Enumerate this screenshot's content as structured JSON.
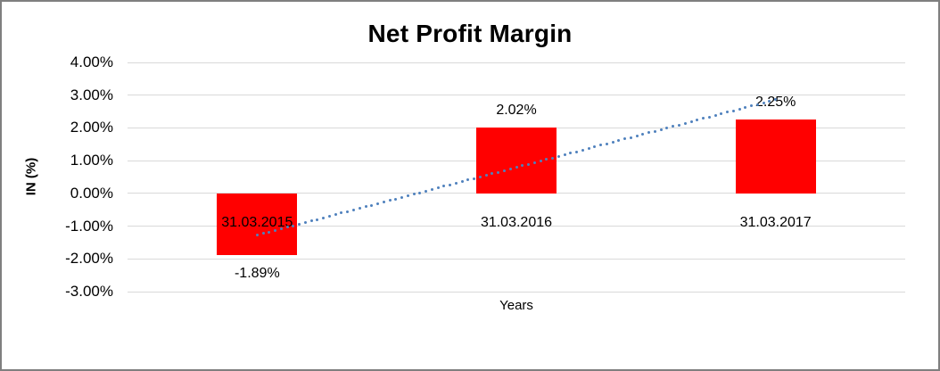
{
  "chart_data": {
    "type": "bar",
    "title": "Net Profit Margin",
    "xlabel": "Years",
    "ylabel": "IN (%)",
    "categories": [
      "31.03.2015",
      "31.03.2016",
      "31.03.2017"
    ],
    "values": [
      -1.89,
      2.02,
      2.25
    ],
    "data_labels": [
      "-1.89%",
      "2.02%",
      "2.25%"
    ],
    "y_ticks": [
      4,
      3,
      2,
      1,
      0,
      -1,
      -2,
      -3
    ],
    "y_tick_labels": [
      "4.00%",
      "3.00%",
      "2.00%",
      "1.00%",
      "0.00%",
      "-1.00%",
      "-2.00%",
      "-3.00%"
    ],
    "ylim": [
      -3,
      4
    ],
    "grid": "horizontal",
    "legend": "none",
    "bar_color": "#ff0000",
    "trendline": {
      "type": "linear",
      "style": "dotted",
      "color": "#4f81bd"
    }
  },
  "colors": {
    "background": "#ffffff",
    "gridline": "#d9d9d9",
    "frame_border": "#7f7f7f",
    "text": "#000000",
    "bar": "#ff0000",
    "trendline": "#4f81bd"
  }
}
